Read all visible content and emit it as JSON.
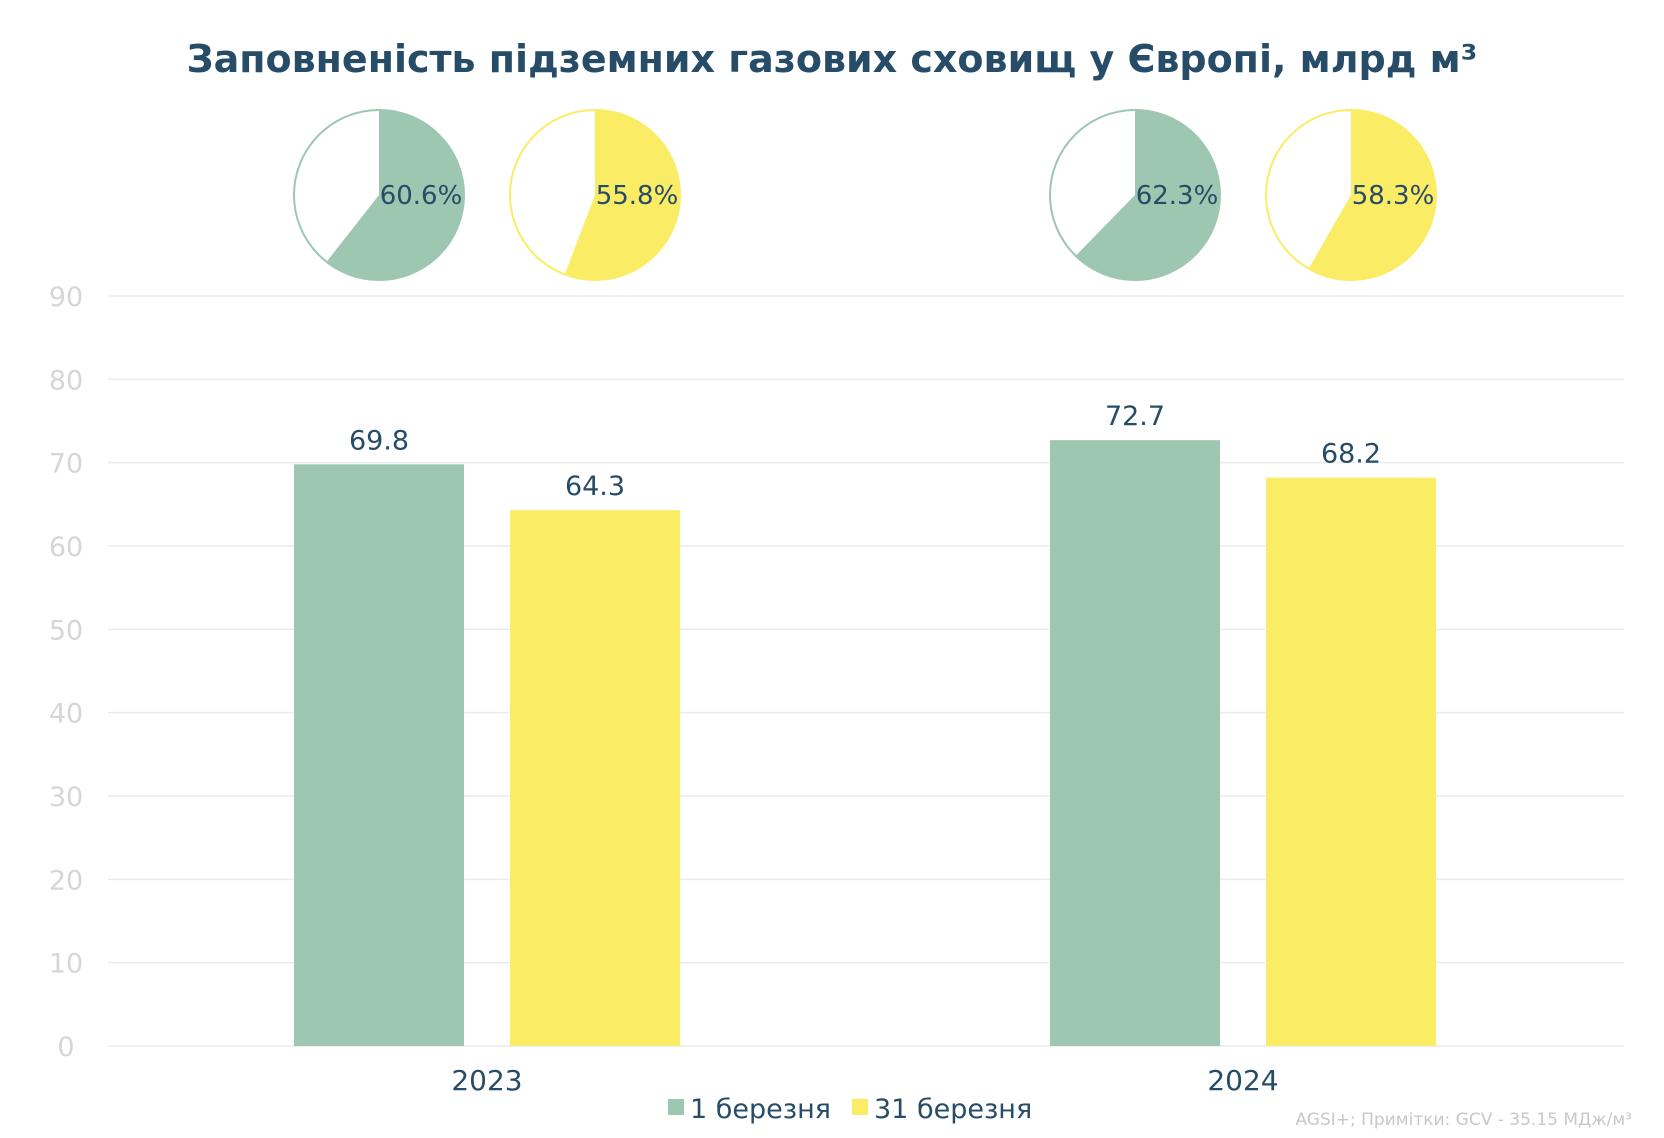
{
  "chart_data": {
    "type": "bar",
    "title": "Заповненість підземних газових сховищ у Європі, млрд м³",
    "categories": [
      "2023",
      "2024"
    ],
    "series": [
      {
        "name": "1 березня",
        "values": [
          69.8,
          72.7
        ],
        "value_labels": [
          "69.8",
          "72.7"
        ],
        "color": "#9dc7b0"
      },
      {
        "name": "31 березня",
        "values": [
          64.3,
          68.2
        ],
        "value_labels": [
          "64.3",
          "68.2"
        ],
        "color": "#fbec66"
      }
    ],
    "ylim": [
      0,
      90
    ],
    "yticks": [
      "0",
      "10",
      "20",
      "30",
      "40",
      "50",
      "60",
      "70",
      "80",
      "90"
    ],
    "grid": true,
    "legend_position": "bottom-center",
    "pies": [
      {
        "category": "2023",
        "series": "1 березня",
        "percent": 60.6,
        "label": "60.6%",
        "color": "#9dc7b0"
      },
      {
        "category": "2023",
        "series": "31 березня",
        "percent": 55.8,
        "label": "55.8%",
        "color": "#fbec66"
      },
      {
        "category": "2024",
        "series": "1 березня",
        "percent": 62.3,
        "label": "62.3%",
        "color": "#9dc7b0"
      },
      {
        "category": "2024",
        "series": "31 березня",
        "percent": 58.3,
        "label": "58.3%",
        "color": "#fbec66"
      }
    ],
    "source_note": "AGSI+; Примітки: GCV - 35.15 МДж/м³"
  }
}
